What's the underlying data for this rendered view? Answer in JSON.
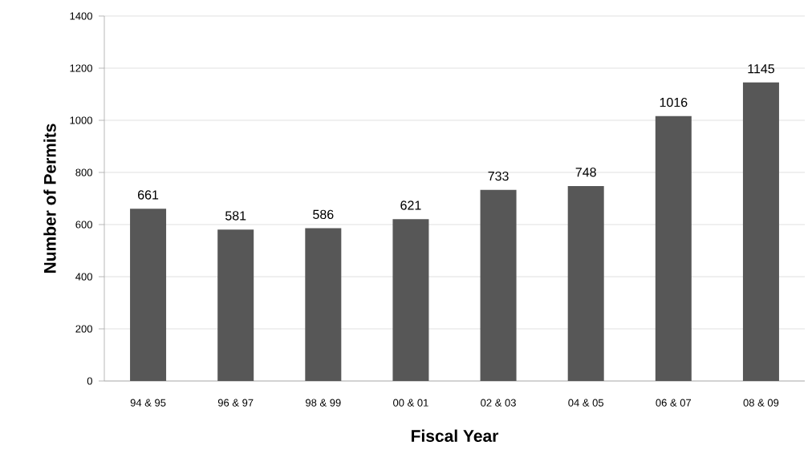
{
  "chart_data": {
    "type": "bar",
    "xlabel": "Fiscal Year",
    "ylabel": "Number of Permits",
    "categories": [
      "94 & 95",
      "96 & 97",
      "98 & 99",
      "00 & 01",
      "02 & 03",
      "04 & 05",
      "06 & 07",
      "08 & 09"
    ],
    "values": [
      661,
      581,
      586,
      621,
      733,
      748,
      1016,
      1145
    ],
    "color": "#575757",
    "data_labels": true,
    "grid": "y",
    "ylim": [
      0,
      1400
    ],
    "yticks": [
      0,
      200,
      400,
      600,
      800,
      1000,
      1200,
      1400
    ]
  }
}
